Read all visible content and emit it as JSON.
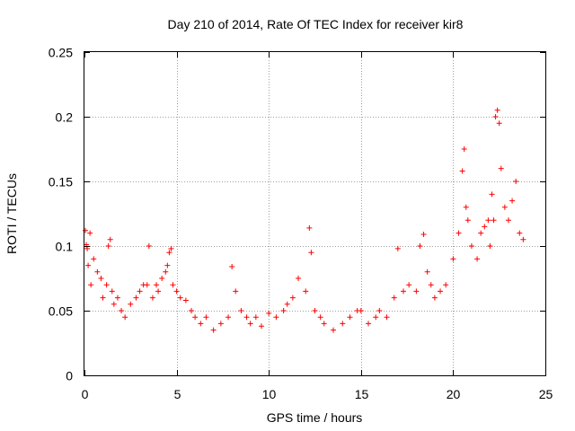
{
  "chart_data": {
    "type": "scatter",
    "title": "Day 210 of 2014, Rate Of TEC Index for receiver kir8",
    "xlabel": "GPS time / hours",
    "ylabel": "ROTI / TECUs",
    "xlim": [
      0,
      25
    ],
    "ylim": [
      0,
      0.25
    ],
    "xticks": [
      0,
      5,
      10,
      15,
      20,
      25
    ],
    "yticks": [
      0,
      0.05,
      0.1,
      0.15,
      0.2,
      0.25
    ],
    "xtick_labels": [
      "0",
      "5",
      "10",
      "15",
      "20",
      "25"
    ],
    "ytick_labels": [
      "0",
      "0.05",
      "0.1",
      "0.15",
      "0.2",
      "0.25"
    ],
    "grid": true,
    "marker": "+",
    "color": "#ff0000",
    "series": [
      {
        "name": "ROTI",
        "x": [
          0.05,
          0.1,
          0.15,
          0.2,
          0.3,
          0.35,
          0.5,
          0.7,
          0.9,
          1.0,
          1.2,
          1.3,
          1.4,
          1.5,
          1.6,
          1.8,
          2.0,
          2.2,
          2.5,
          2.8,
          3.0,
          3.2,
          3.4,
          3.5,
          3.7,
          3.9,
          4.0,
          4.2,
          4.4,
          4.5,
          4.6,
          4.7,
          4.8,
          5.0,
          5.2,
          5.5,
          5.8,
          6.0,
          6.3,
          6.6,
          7.0,
          7.4,
          7.8,
          8.0,
          8.2,
          8.5,
          8.8,
          9.0,
          9.3,
          9.6,
          10.0,
          10.4,
          10.8,
          11.0,
          11.3,
          11.6,
          12.0,
          12.2,
          12.3,
          12.5,
          12.8,
          13.0,
          13.5,
          14.0,
          14.4,
          14.8,
          15.0,
          15.4,
          15.8,
          16.0,
          16.4,
          16.8,
          17.0,
          17.3,
          17.6,
          18.0,
          18.2,
          18.4,
          18.6,
          18.8,
          19.0,
          19.3,
          19.6,
          20.0,
          20.3,
          20.5,
          20.6,
          20.7,
          20.8,
          21.0,
          21.3,
          21.5,
          21.7,
          21.9,
          22.0,
          22.1,
          22.2,
          22.3,
          22.4,
          22.5,
          22.6,
          22.8,
          23.0,
          23.2,
          23.4,
          23.6,
          23.8
        ],
        "y": [
          0.112,
          0.101,
          0.098,
          0.085,
          0.11,
          0.07,
          0.09,
          0.08,
          0.075,
          0.06,
          0.07,
          0.1,
          0.105,
          0.065,
          0.055,
          0.06,
          0.05,
          0.045,
          0.055,
          0.06,
          0.065,
          0.07,
          0.07,
          0.1,
          0.06,
          0.07,
          0.065,
          0.075,
          0.08,
          0.085,
          0.095,
          0.098,
          0.07,
          0.065,
          0.06,
          0.058,
          0.05,
          0.045,
          0.04,
          0.045,
          0.035,
          0.04,
          0.045,
          0.084,
          0.065,
          0.05,
          0.045,
          0.04,
          0.045,
          0.038,
          0.048,
          0.045,
          0.05,
          0.055,
          0.06,
          0.075,
          0.065,
          0.114,
          0.095,
          0.05,
          0.045,
          0.04,
          0.035,
          0.04,
          0.045,
          0.05,
          0.05,
          0.04,
          0.045,
          0.05,
          0.045,
          0.06,
          0.098,
          0.065,
          0.07,
          0.065,
          0.1,
          0.109,
          0.08,
          0.07,
          0.06,
          0.065,
          0.07,
          0.09,
          0.11,
          0.158,
          0.175,
          0.13,
          0.12,
          0.1,
          0.09,
          0.11,
          0.115,
          0.12,
          0.1,
          0.14,
          0.12,
          0.2,
          0.205,
          0.195,
          0.16,
          0.13,
          0.12,
          0.135,
          0.15,
          0.11,
          0.105
        ]
      }
    ]
  }
}
